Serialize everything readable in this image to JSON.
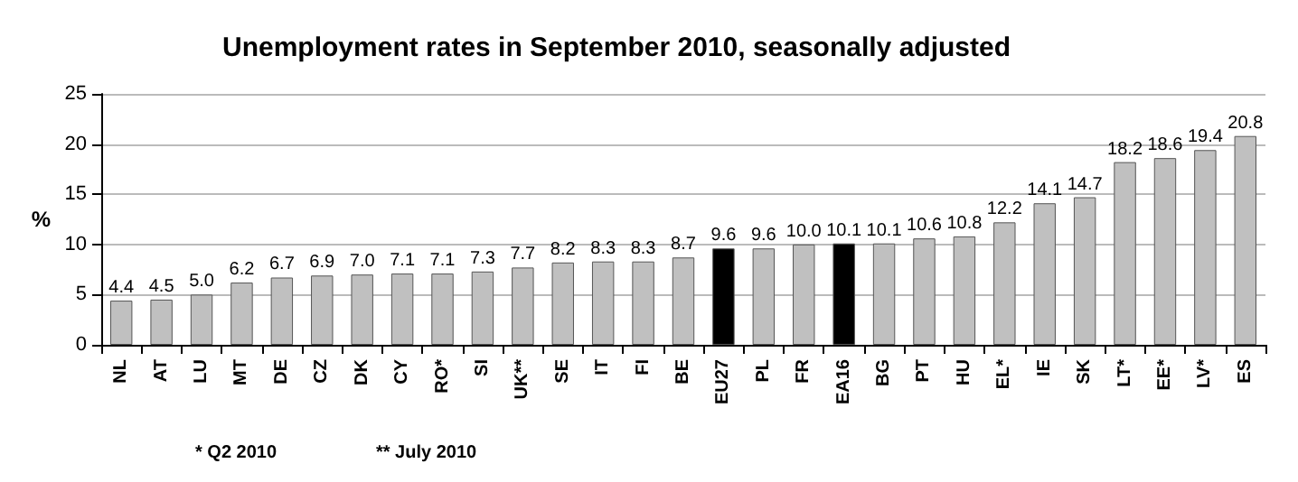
{
  "chart_data": {
    "type": "bar",
    "title": "Unemployment rates in September 2010, seasonally adjusted",
    "ylabel": "%",
    "categories": [
      "NL",
      "AT",
      "LU",
      "MT",
      "DE",
      "CZ",
      "DK",
      "CY",
      "RO*",
      "SI",
      "UK**",
      "SE",
      "IT",
      "FI",
      "BE",
      "EU27",
      "PL",
      "FR",
      "EA16",
      "BG",
      "PT",
      "HU",
      "EL*",
      "IE",
      "SK",
      "LT*",
      "EE*",
      "LV*",
      "ES"
    ],
    "values": [
      4.4,
      4.5,
      5.0,
      6.2,
      6.7,
      6.9,
      7.0,
      7.1,
      7.1,
      7.3,
      7.7,
      8.2,
      8.3,
      8.3,
      8.7,
      9.6,
      9.6,
      10.0,
      10.1,
      10.1,
      10.6,
      10.8,
      12.2,
      14.1,
      14.7,
      18.2,
      18.6,
      19.4,
      20.8
    ],
    "value_labels": [
      "4.4",
      "4.5",
      "5.0",
      "6.2",
      "6.7",
      "6.9",
      "7.0",
      "7.1",
      "7.1",
      "7.3",
      "7.7",
      "8.2",
      "8.3",
      "8.3",
      "8.7",
      "9.6",
      "9.6",
      "10.0",
      "10.1",
      "10.1",
      "10.6",
      "10.8",
      "12.2",
      "14.1",
      "14.7",
      "18.2",
      "18.6",
      "19.4",
      "20.8"
    ],
    "colors": [
      "#c0c0c0",
      "#c0c0c0",
      "#c0c0c0",
      "#c0c0c0",
      "#c0c0c0",
      "#c0c0c0",
      "#c0c0c0",
      "#c0c0c0",
      "#c0c0c0",
      "#c0c0c0",
      "#c0c0c0",
      "#c0c0c0",
      "#c0c0c0",
      "#c0c0c0",
      "#c0c0c0",
      "#000000",
      "#c0c0c0",
      "#c0c0c0",
      "#000000",
      "#c0c0c0",
      "#c0c0c0",
      "#c0c0c0",
      "#c0c0c0",
      "#c0c0c0",
      "#c0c0c0",
      "#c0c0c0",
      "#c0c0c0",
      "#c0c0c0",
      "#c0c0c0"
    ],
    "ylim": [
      0,
      25
    ],
    "yticks": [
      0,
      5,
      10,
      15,
      20,
      25
    ],
    "grid": "y",
    "annotations": [
      "* Q2 2010",
      "** July 2010"
    ]
  }
}
